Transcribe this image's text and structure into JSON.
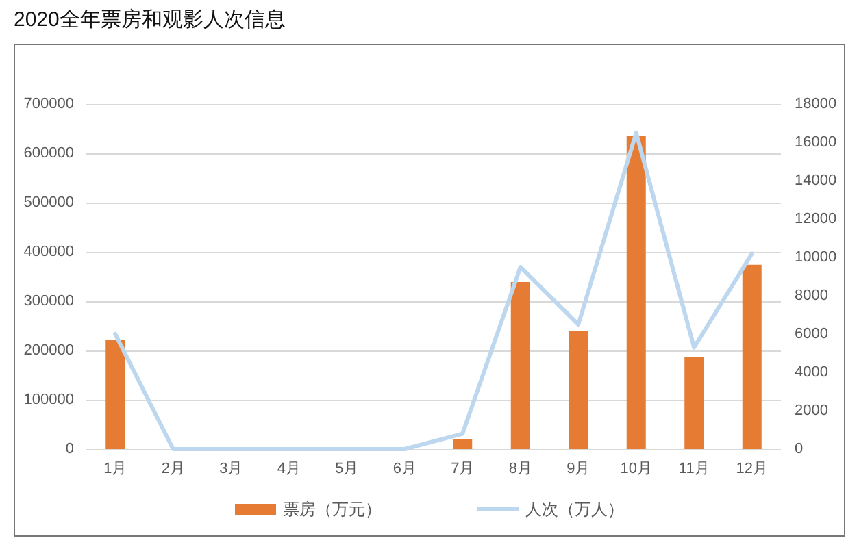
{
  "chart_data": {
    "type": "bar",
    "title": "2020全年票房和观影人次信息",
    "categories": [
      "1月",
      "2月",
      "3月",
      "4月",
      "5月",
      "6月",
      "7月",
      "8月",
      "9月",
      "10月",
      "11月",
      "12月"
    ],
    "series": [
      {
        "name": "票房（万元）",
        "color": "#e67c34",
        "values": [
          222000,
          0,
          0,
          0,
          0,
          0,
          20000,
          339000,
          240000,
          635000,
          186000,
          374000
        ]
      },
      {
        "name": "人次（万人）",
        "type": "line",
        "axis": "y2",
        "color": "#bdd7ee",
        "marker": "none",
        "values": [
          6000,
          0,
          0,
          0,
          0,
          0,
          800,
          9500,
          6500,
          16500,
          5300,
          10200
        ]
      }
    ],
    "ylim": [
      0,
      700000
    ],
    "yticks": [
      0,
      100000,
      200000,
      300000,
      400000,
      500000,
      600000,
      700000
    ],
    "y2lim": [
      0,
      18000
    ],
    "y2ticks": [
      0,
      2000,
      4000,
      6000,
      8000,
      10000,
      12000,
      14000,
      16000,
      18000
    ],
    "grid": "y",
    "legend": "bottom"
  }
}
